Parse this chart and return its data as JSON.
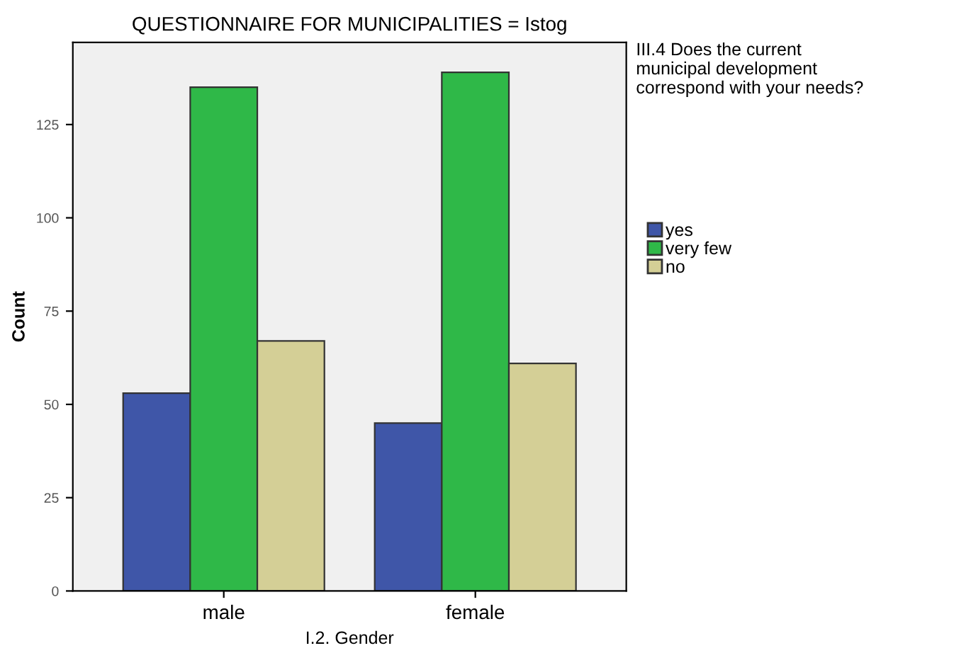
{
  "chart_data": {
    "type": "bar",
    "title": "QUESTIONNAIRE FOR MUNICIPALITIES = Istog",
    "xlabel": "I.2. Gender",
    "ylabel": "Count",
    "legend_title": "III.4 Does the current\nmunicipal development\ncorrespond with your needs?",
    "categories": [
      "male",
      "female"
    ],
    "series": [
      {
        "name": "yes",
        "color": "#3f56a8",
        "values": [
          53,
          45
        ]
      },
      {
        "name": "very few",
        "color": "#2fb848",
        "values": [
          135,
          139
        ]
      },
      {
        "name": "no",
        "color": "#d4cf96",
        "values": [
          67,
          61
        ]
      }
    ],
    "ylim": [
      0,
      147
    ],
    "yticks": [
      0,
      25,
      50,
      75,
      100,
      125
    ],
    "grid": false,
    "legend": "right"
  }
}
